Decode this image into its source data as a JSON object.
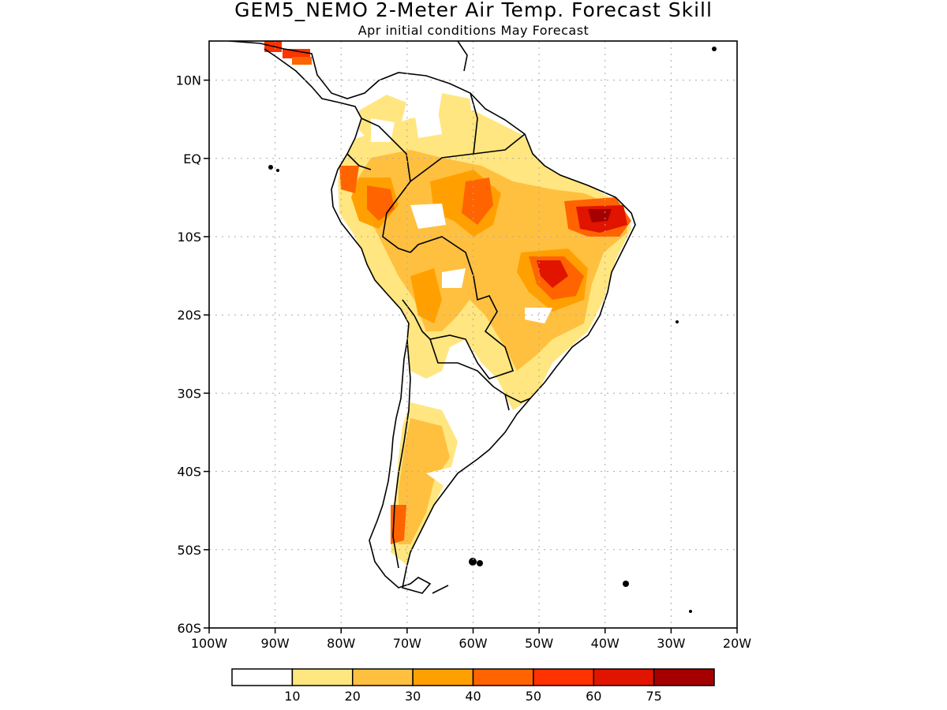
{
  "title": "GEM5_NEMO 2-Meter Air Temp. Forecast Skill",
  "subtitle": "Apr initial conditions  May Forecast",
  "map": {
    "lon_range": [
      -100,
      -20
    ],
    "lat_range": [
      -60,
      15
    ],
    "lat_ticks": [
      {
        "value": 10,
        "label": "10N"
      },
      {
        "value": 0,
        "label": "EQ"
      },
      {
        "value": -10,
        "label": "10S"
      },
      {
        "value": -20,
        "label": "20S"
      },
      {
        "value": -30,
        "label": "30S"
      },
      {
        "value": -40,
        "label": "40S"
      },
      {
        "value": -50,
        "label": "50S"
      },
      {
        "value": -60,
        "label": "60S"
      }
    ],
    "lon_ticks": [
      {
        "value": -100,
        "label": "100W"
      },
      {
        "value": -90,
        "label": "90W"
      },
      {
        "value": -80,
        "label": "80W"
      },
      {
        "value": -70,
        "label": "70W"
      },
      {
        "value": -60,
        "label": "60W"
      },
      {
        "value": -50,
        "label": "50W"
      },
      {
        "value": -40,
        "label": "40W"
      },
      {
        "value": -30,
        "label": "30W"
      },
      {
        "value": -20,
        "label": "20W"
      }
    ],
    "grid": "dotted"
  },
  "legend": {
    "colors": [
      "#ffffff",
      "#ffe680",
      "#ffc040",
      "#ffa000",
      "#ff6400",
      "#ff3200",
      "#e11400",
      "#a50000"
    ],
    "labels": [
      "10",
      "20",
      "30",
      "40",
      "50",
      "60",
      "75"
    ]
  },
  "colors": {
    "land_outline": "#000000",
    "grid": "#aaaaaa"
  }
}
